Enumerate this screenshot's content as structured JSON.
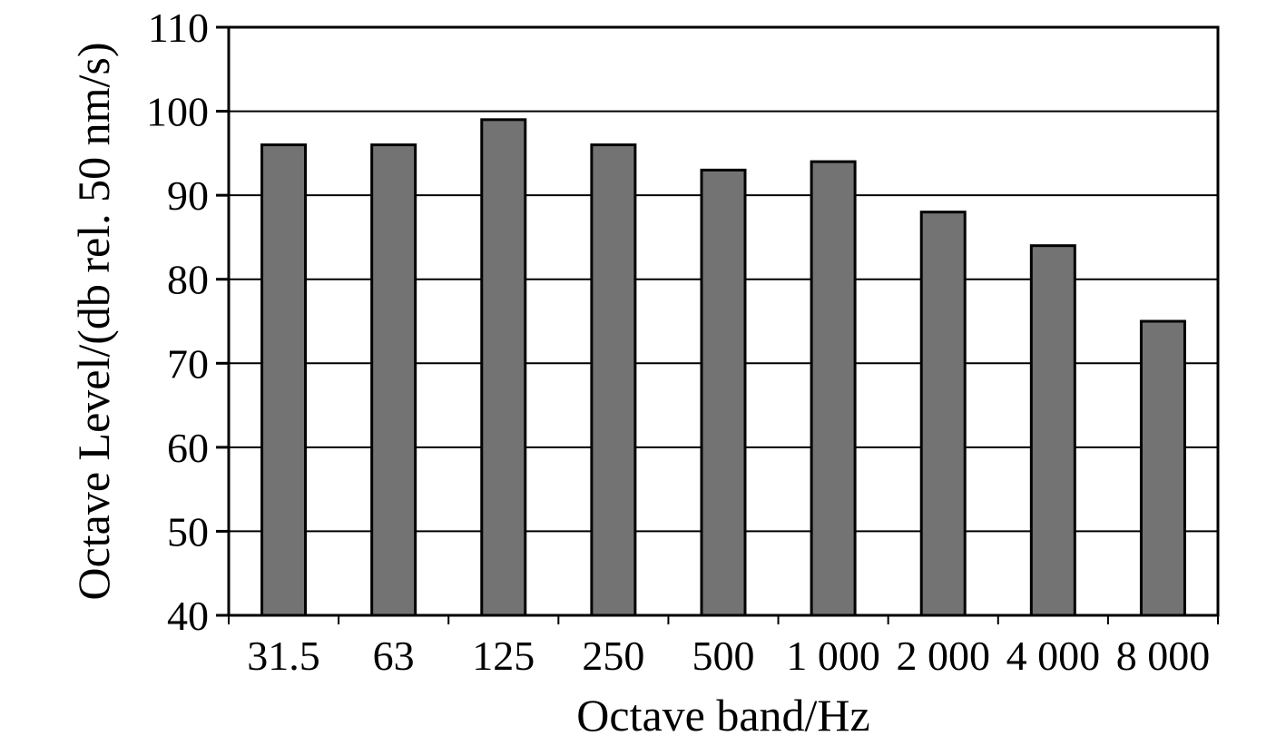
{
  "chart_data": {
    "type": "bar",
    "categories": [
      "31.5",
      "63",
      "125",
      "250",
      "500",
      "1 000",
      "2 000",
      "4 000",
      "8 000"
    ],
    "values": [
      96,
      96,
      99,
      96,
      93,
      94,
      88,
      84,
      75
    ],
    "xlabel": "Octave band/Hz",
    "ylabel": "Octave Level/(db rel. 50 nm/s)",
    "ylim": [
      40,
      110
    ],
    "yticks": [
      40,
      50,
      60,
      70,
      80,
      90,
      100,
      110
    ],
    "grid": true,
    "bar_color": "#737373"
  }
}
